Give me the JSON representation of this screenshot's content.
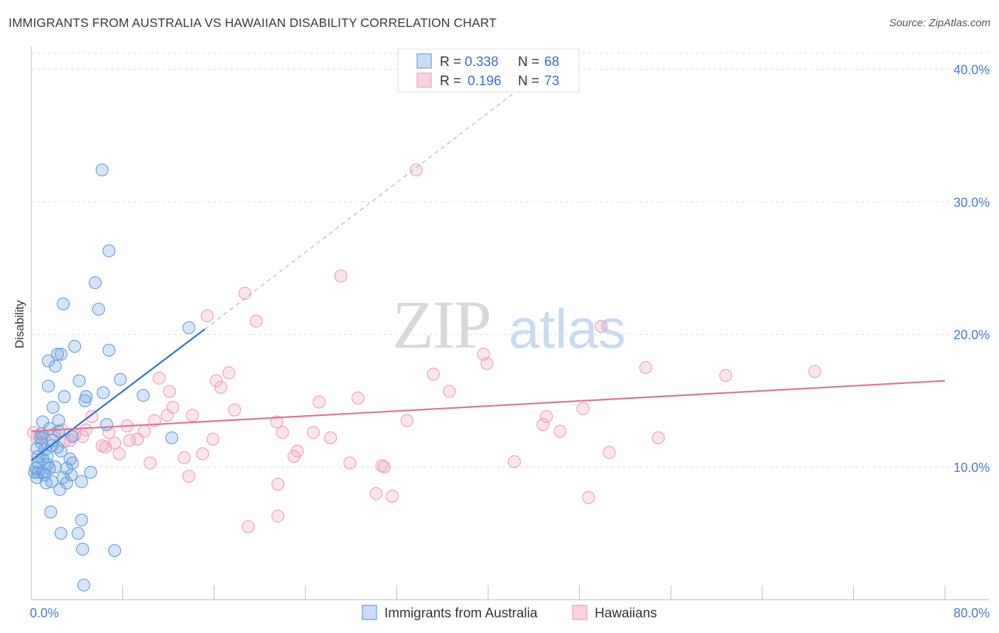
{
  "title": "IMMIGRANTS FROM AUSTRALIA VS HAWAIIAN DISABILITY CORRELATION CHART",
  "source": "Source: ZipAtlas.com",
  "watermark": {
    "zip": "ZIP",
    "atlas": "atlas"
  },
  "legend": {
    "series1": {
      "r_label": "R = ",
      "r_value": "0.338",
      "n_label": "N = ",
      "n_value": "68"
    },
    "series2": {
      "r_label": "R = ",
      "r_value": "0.196",
      "n_label": "N = ",
      "n_value": "73"
    }
  },
  "bottom_legend": {
    "series1": "Immigrants from Australia",
    "series2": "Hawaiians"
  },
  "chart_data": {
    "type": "scatter",
    "ylabel": "Disability",
    "xlim": [
      0,
      80
    ],
    "ylim": [
      0,
      42
    ],
    "x_ticks": [
      {
        "value": 0,
        "label": "0.0%"
      },
      {
        "value": 80,
        "label": "80.0%"
      }
    ],
    "y_ticks": [
      {
        "value": 10,
        "label": "10.0%"
      },
      {
        "value": 20,
        "label": "20.0%"
      },
      {
        "value": 30,
        "label": "30.0%"
      },
      {
        "value": 40,
        "label": "40.0%"
      }
    ],
    "x_minor_ticks": [
      8,
      16,
      24,
      32,
      40,
      48,
      56,
      64,
      72,
      80
    ],
    "grid": true,
    "colors": {
      "series1": "#6aa0e0",
      "series1_line": "#2b6fcf",
      "series2": "#f0a0bb",
      "series2_line": "#e0709a",
      "tick_label": "#4a7bc8"
    },
    "series": [
      {
        "name": "Immigrants from Australia",
        "r": 0.338,
        "n": 68,
        "trend": {
          "x0": 0,
          "y0": 10.5,
          "x1": 15.2,
          "y1": 20.4,
          "dash_x1": 45,
          "dash_y1": 40.0
        },
        "points": [
          [
            6.2,
            32.4
          ],
          [
            6.8,
            26.3
          ],
          [
            5.6,
            23.9
          ],
          [
            5.9,
            21.9
          ],
          [
            2.8,
            22.3
          ],
          [
            13.8,
            20.5
          ],
          [
            3.8,
            19.1
          ],
          [
            6.8,
            18.8
          ],
          [
            1.5,
            18.0
          ],
          [
            2.3,
            18.5
          ],
          [
            2.6,
            18.5
          ],
          [
            2.1,
            17.6
          ],
          [
            7.8,
            16.6
          ],
          [
            4.2,
            16.5
          ],
          [
            1.5,
            16.1
          ],
          [
            6.3,
            15.6
          ],
          [
            9.8,
            15.4
          ],
          [
            2.9,
            15.3
          ],
          [
            4.8,
            15.3
          ],
          [
            4.7,
            15.0
          ],
          [
            1.9,
            14.5
          ],
          [
            1.0,
            13.4
          ],
          [
            2.4,
            13.5
          ],
          [
            6.6,
            13.2
          ],
          [
            1.6,
            12.9
          ],
          [
            2.4,
            12.7
          ],
          [
            3.6,
            12.3
          ],
          [
            0.8,
            12.2
          ],
          [
            1.9,
            12.0
          ],
          [
            12.3,
            12.2
          ],
          [
            0.9,
            11.8
          ],
          [
            2.3,
            11.5
          ],
          [
            0.5,
            11.4
          ],
          [
            1.2,
            11.3
          ],
          [
            2.6,
            11.2
          ],
          [
            0.6,
            10.8
          ],
          [
            1.4,
            10.8
          ],
          [
            3.4,
            10.6
          ],
          [
            1.0,
            10.6
          ],
          [
            0.6,
            10.3
          ],
          [
            1.4,
            10.2
          ],
          [
            3.6,
            10.3
          ],
          [
            0.4,
            9.9
          ],
          [
            1.6,
            9.9
          ],
          [
            3.1,
            9.9
          ],
          [
            0.6,
            9.6
          ],
          [
            1.0,
            9.6
          ],
          [
            0.3,
            9.6
          ],
          [
            5.2,
            9.6
          ],
          [
            3.5,
            9.4
          ],
          [
            1.2,
            9.4
          ],
          [
            0.5,
            9.2
          ],
          [
            2.8,
            9.2
          ],
          [
            4.4,
            8.9
          ],
          [
            1.8,
            8.9
          ],
          [
            1.3,
            8.8
          ],
          [
            3.1,
            8.8
          ],
          [
            2.5,
            8.3
          ],
          [
            1.7,
            6.6
          ],
          [
            4.4,
            6.0
          ],
          [
            2.6,
            5.0
          ],
          [
            4.1,
            5.0
          ],
          [
            4.5,
            3.8
          ],
          [
            7.3,
            3.7
          ],
          [
            4.6,
            1.1
          ],
          [
            0.9,
            12.5
          ],
          [
            1.8,
            11.6
          ],
          [
            2.1,
            10.0
          ]
        ]
      },
      {
        "name": "Hawaiians",
        "r": 0.196,
        "n": 73,
        "trend": {
          "x0": 0,
          "y0": 12.7,
          "x1": 80,
          "y1": 16.5
        },
        "points": [
          [
            33.7,
            32.4
          ],
          [
            27.1,
            24.4
          ],
          [
            18.7,
            23.1
          ],
          [
            15.4,
            21.4
          ],
          [
            19.7,
            21.0
          ],
          [
            49.9,
            20.6
          ],
          [
            39.6,
            18.5
          ],
          [
            39.9,
            17.8
          ],
          [
            53.8,
            17.5
          ],
          [
            68.6,
            17.2
          ],
          [
            60.8,
            16.9
          ],
          [
            35.2,
            17.0
          ],
          [
            17.3,
            17.1
          ],
          [
            11.2,
            16.7
          ],
          [
            16.2,
            16.5
          ],
          [
            16.6,
            16.0
          ],
          [
            12.1,
            15.7
          ],
          [
            36.6,
            15.7
          ],
          [
            28.6,
            15.2
          ],
          [
            25.2,
            14.9
          ],
          [
            12.4,
            14.5
          ],
          [
            17.8,
            14.3
          ],
          [
            48.3,
            14.4
          ],
          [
            14.1,
            13.9
          ],
          [
            11.9,
            13.9
          ],
          [
            5.3,
            13.8
          ],
          [
            45.1,
            13.8
          ],
          [
            21.5,
            13.4
          ],
          [
            32.9,
            13.5
          ],
          [
            10.8,
            13.5
          ],
          [
            8.4,
            13.1
          ],
          [
            44.8,
            13.2
          ],
          [
            46.3,
            12.7
          ],
          [
            2.7,
            12.8
          ],
          [
            4.8,
            12.8
          ],
          [
            9.9,
            12.7
          ],
          [
            22.0,
            12.6
          ],
          [
            24.7,
            12.6
          ],
          [
            6.8,
            12.6
          ],
          [
            0.2,
            12.6
          ],
          [
            1.1,
            12.3
          ],
          [
            2.0,
            12.5
          ],
          [
            3.8,
            12.4
          ],
          [
            4.5,
            12.3
          ],
          [
            26.2,
            12.2
          ],
          [
            15.9,
            12.1
          ],
          [
            9.3,
            12.1
          ],
          [
            54.9,
            12.2
          ],
          [
            8.6,
            12.0
          ],
          [
            2.9,
            11.9
          ],
          [
            7.3,
            11.8
          ],
          [
            6.2,
            11.6
          ],
          [
            6.5,
            11.5
          ],
          [
            23.3,
            11.2
          ],
          [
            50.6,
            11.1
          ],
          [
            7.7,
            11.0
          ],
          [
            15.0,
            11.0
          ],
          [
            23.0,
            10.8
          ],
          [
            13.4,
            10.7
          ],
          [
            42.3,
            10.4
          ],
          [
            10.4,
            10.3
          ],
          [
            27.9,
            10.3
          ],
          [
            30.7,
            10.1
          ],
          [
            30.9,
            10.0
          ],
          [
            13.8,
            9.3
          ],
          [
            21.6,
            8.7
          ],
          [
            30.2,
            8.0
          ],
          [
            31.6,
            7.8
          ],
          [
            48.8,
            7.7
          ],
          [
            21.6,
            6.3
          ],
          [
            19.0,
            5.5
          ],
          [
            0.5,
            12.2
          ],
          [
            3.4,
            12.0
          ]
        ]
      }
    ]
  }
}
